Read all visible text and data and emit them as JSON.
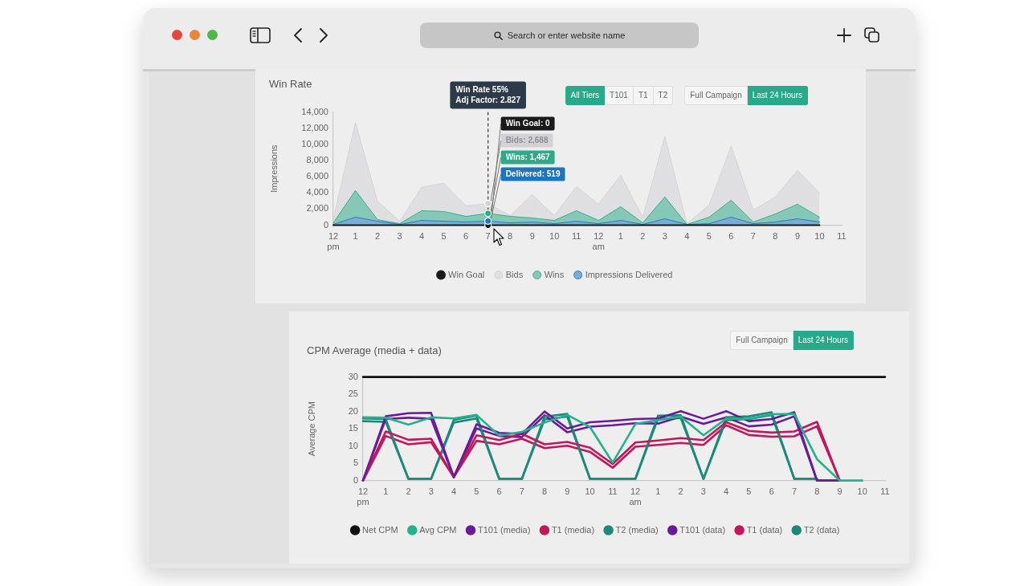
{
  "chart_data": [
    {
      "type": "other",
      "annotations": [
        "Search or enter website name"
      ]
    },
    {
      "type": "area",
      "title": "Win Rate",
      "ylabel": "Impressions",
      "categories": [
        "12 pm",
        "1",
        "2",
        "3",
        "4",
        "5",
        "6",
        "7",
        "8",
        "9",
        "10",
        "11",
        "12 am",
        "1",
        "2",
        "3",
        "4",
        "5",
        "6",
        "7",
        "8",
        "9",
        "10",
        "11"
      ],
      "series": [
        {
          "name": "Win Goal",
          "type": "line",
          "color": "#1a1a1a",
          "values": [
            0,
            0,
            0,
            0,
            0,
            0,
            0,
            0,
            0,
            0,
            0,
            0,
            0,
            0,
            0,
            0,
            0,
            0,
            0,
            0,
            0,
            0,
            0,
            null
          ]
        },
        {
          "name": "Bids",
          "color": "#d2d2d6",
          "values": [
            800,
            12700,
            3000,
            500,
            4700,
            5200,
            2400,
            2688,
            1200,
            3800,
            1200,
            4800,
            2600,
            6200,
            1000,
            11000,
            200,
            2500,
            9800,
            1900,
            3500,
            6800,
            4000,
            null
          ]
        },
        {
          "name": "Wins",
          "color": "#2fa987",
          "values": [
            300,
            4300,
            700,
            200,
            1800,
            1700,
            1100,
            1467,
            1100,
            900,
            600,
            1800,
            600,
            2300,
            300,
            3500,
            100,
            1000,
            3100,
            400,
            1400,
            2600,
            1000,
            null
          ]
        },
        {
          "name": "Impressions Delivered",
          "color": "#1d76bd",
          "values": [
            100,
            1000,
            500,
            100,
            600,
            500,
            400,
            519,
            300,
            400,
            200,
            500,
            200,
            600,
            100,
            800,
            100,
            200,
            1000,
            200,
            400,
            800,
            400,
            null
          ]
        }
      ],
      "ylim": [
        0,
        14000
      ],
      "yticks": [
        0,
        {
          "value": 2000,
          "label": "2,000"
        },
        {
          "value": 4000,
          "label": "4,000"
        },
        {
          "value": 6000,
          "label": "6,000"
        },
        {
          "value": 8000,
          "label": "8,000"
        },
        {
          "value": 10000,
          "label": "10,000"
        },
        {
          "value": 12000,
          "label": "12,000"
        },
        {
          "value": 14000,
          "label": "14,000"
        }
      ],
      "legend": "bottom",
      "ref_lines": [
        {
          "axis": "x",
          "value": "7",
          "line_style": "dashed",
          "color": "#444444"
        }
      ],
      "annotations": [
        "Win Rate 55%",
        "Adj Factor: 2.827",
        {
          "text": "Win Goal: 0",
          "x": "7",
          "y": 0
        },
        {
          "text": "Bids: 2,688",
          "x": "7",
          "y": 2688
        },
        {
          "text": "Wins: 1,467",
          "x": "7",
          "y": 1467
        },
        {
          "text": "Delivered: 519",
          "x": "7",
          "y": 519
        },
        "All Tiers",
        "T101",
        "T1",
        "T2",
        "Full Campaign",
        "Last 24 Hours"
      ]
    },
    {
      "type": "line",
      "title": "CPM Average (media + data)",
      "ylabel": "Average CPM",
      "categories": [
        "12 pm",
        "1",
        "2",
        "3",
        "4",
        "5",
        "6",
        "7",
        "8",
        "9",
        "10",
        "11",
        "12 am",
        "1",
        "2",
        "3",
        "4",
        "5",
        "6",
        "7",
        "8",
        "9",
        "10",
        "11"
      ],
      "series": [
        {
          "name": "Net CPM",
          "color": "#111111",
          "values": [
            30,
            30,
            30,
            30,
            30,
            30,
            30,
            30,
            30,
            30,
            30,
            30,
            30,
            30,
            30,
            30,
            30,
            30,
            30,
            30,
            30,
            30,
            30,
            30
          ]
        },
        {
          "name": "Avg CPM",
          "color": "#22b38d",
          "values": [
            18.3,
            18.2,
            16.2,
            18.3,
            18.0,
            19.0,
            13.0,
            14.1,
            16.8,
            19.0,
            15.5,
            5.2,
            16.4,
            17.5,
            18.5,
            13.1,
            17.9,
            17.9,
            19.2,
            19.3,
            6.2,
            0,
            0,
            null
          ]
        },
        {
          "name": "T101 (media)",
          "color": "#6a1b9a",
          "values": [
            0,
            18.6,
            19.5,
            19.6,
            1,
            16.3,
            13.8,
            13.5,
            20.0,
            15.1,
            16.9,
            17.3,
            17.8,
            18.0,
            20.1,
            17.9,
            20.1,
            17.2,
            17.8,
            19.8,
            0,
            0,
            null,
            null
          ]
        },
        {
          "name": "T1 (media)",
          "color": "#c2185b",
          "values": [
            0,
            14.2,
            11.8,
            12.1,
            1,
            13.1,
            11.7,
            13.5,
            10.5,
            11.2,
            9.5,
            4.8,
            11.0,
            11.6,
            12.3,
            11.7,
            16.9,
            14.4,
            13.9,
            14.2,
            17.0,
            0,
            null,
            null
          ]
        },
        {
          "name": "T2 (media)",
          "color": "#1b8a7a",
          "values": [
            18.0,
            17.8,
            0.5,
            0.5,
            17.6,
            18.8,
            0.5,
            0.5,
            18.5,
            19.3,
            0.5,
            0.5,
            0.5,
            18.8,
            18.9,
            0.5,
            18.3,
            18.6,
            19.8,
            0.5,
            0.5,
            null,
            null,
            null
          ]
        },
        {
          "name": "T101 (data)",
          "color": "#6a1b9a",
          "values": [
            0,
            17.8,
            18.2,
            17.9,
            1,
            15.1,
            12.9,
            12.6,
            18.9,
            14.0,
            15.6,
            16.0,
            16.6,
            16.5,
            18.5,
            16.4,
            18.3,
            15.7,
            16.2,
            18.6,
            0,
            0,
            null,
            null
          ]
        },
        {
          "name": "T1 (data)",
          "color": "#c2185b",
          "values": [
            0,
            12.9,
            10.5,
            11.1,
            1,
            11.5,
            10.5,
            12.1,
            9.4,
            10.1,
            8.3,
            3.7,
            9.8,
            10.3,
            10.9,
            10.3,
            16.0,
            13.2,
            12.7,
            12.8,
            15.7,
            0,
            null,
            null
          ]
        },
        {
          "name": "T2 (data)",
          "color": "#1b8a7a",
          "values": [
            17.2,
            17.0,
            0.5,
            0.5,
            16.8,
            18.0,
            0.5,
            0.5,
            17.7,
            18.5,
            0.5,
            0.5,
            0.5,
            18.0,
            18.1,
            0.5,
            17.5,
            17.8,
            19.0,
            0.5,
            0.5,
            null,
            null,
            null
          ]
        }
      ],
      "ylim": [
        0,
        30
      ],
      "yticks": [
        0,
        5,
        10,
        15,
        20,
        25,
        30
      ],
      "legend": "bottom",
      "annotations": [
        "Full Campaign",
        "Last 24 Hours"
      ]
    }
  ]
}
